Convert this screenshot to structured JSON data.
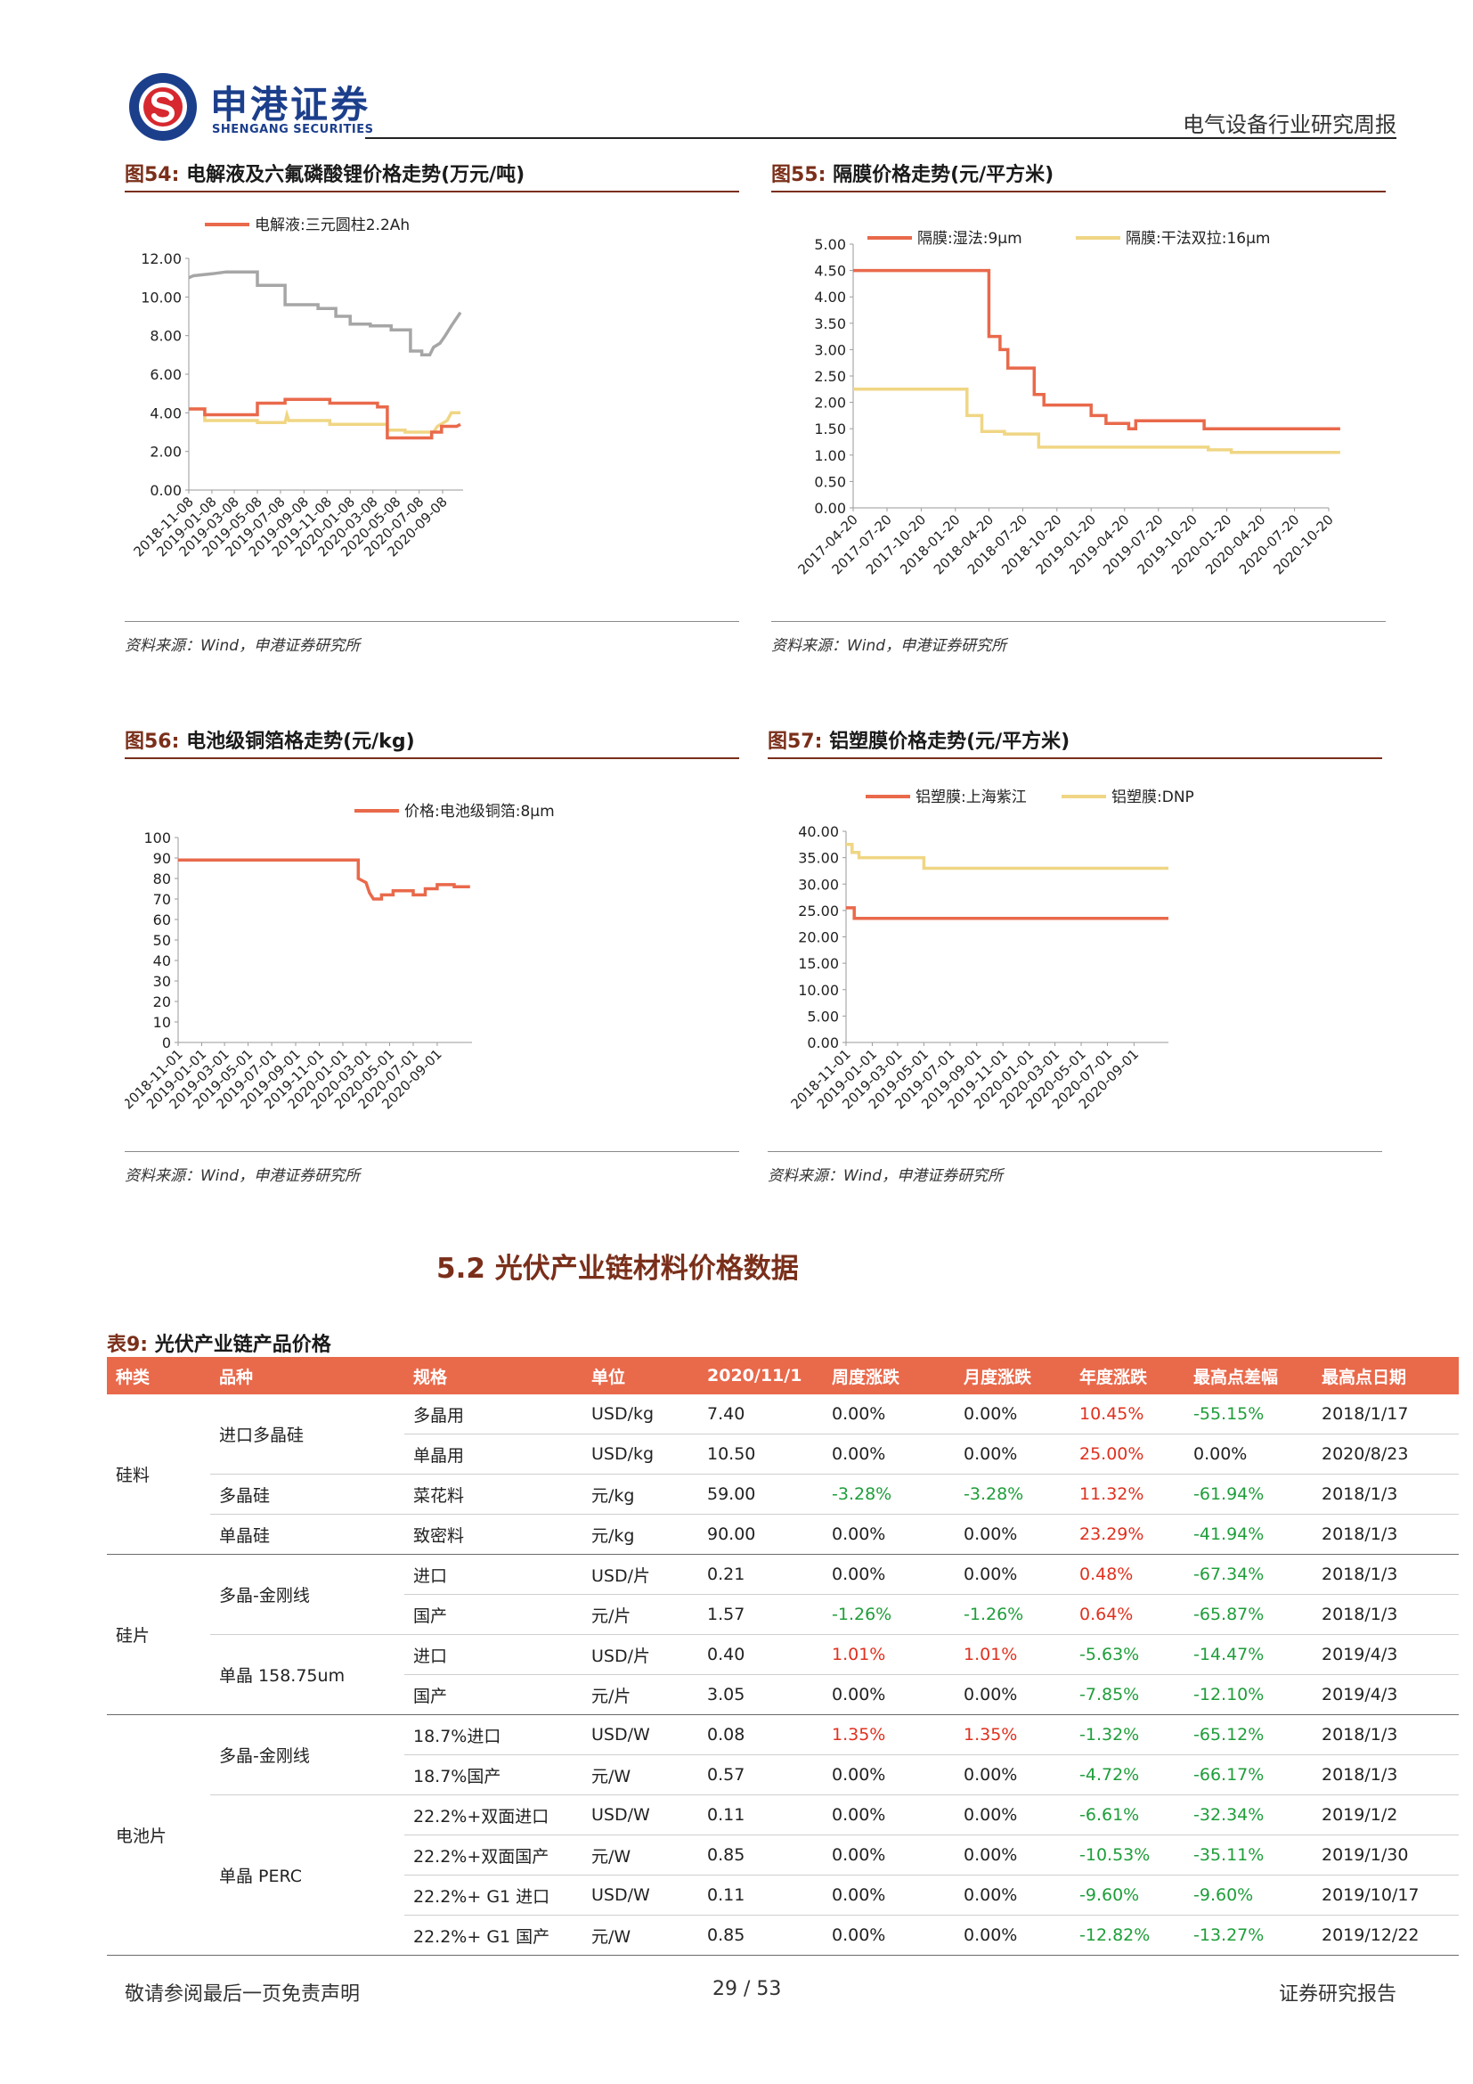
{
  "header": {
    "brand_cn": "申港证券",
    "brand_en": "SHENGANG SECURITIES",
    "report_type": "电气设备行业研究周报"
  },
  "figures": [
    {
      "num": "图54:",
      "title": "电解液及六氟磷酸锂价格走势(万元/吨)",
      "source": "资料来源：Wind，申港证券研究所"
    },
    {
      "num": "图55:",
      "title": "隔膜价格走势(元/平方米)",
      "source": "资料来源：Wind，申港证券研究所"
    },
    {
      "num": "图56:",
      "title": "电池级铜箔格走势(元/kg)",
      "source": "资料来源：Wind，申港证券研究所"
    },
    {
      "num": "图57:",
      "title": "铝塑膜价格走势(元/平方米)",
      "source": "资料来源：Wind，申港证券研究所"
    }
  ],
  "chart_data": [
    {
      "type": "line",
      "categories": [
        "2018-11-08",
        "2019-01-08",
        "2019-03-08",
        "2019-05-08",
        "2019-07-08",
        "2019-09-08",
        "2019-11-08",
        "2020-01-08",
        "2020-03-08",
        "2020-05-08",
        "2020-07-08",
        "2020-09-08"
      ],
      "ylim": [
        0,
        12
      ],
      "yticks": [
        "0.00",
        "2.00",
        "4.00",
        "6.00",
        "8.00",
        "10.00",
        "12.00"
      ],
      "legend": [
        "电解液:三元圆柱2.2Ah"
      ],
      "series": [
        {
          "name": "电解液:三元圆柱2.2Ah",
          "color": "#e9694b",
          "points": [
            [
              "2018-11-08",
              4.2
            ],
            [
              "2018-12-20",
              4.2
            ],
            [
              "2018-12-20",
              3.9
            ],
            [
              "2019-05-08",
              3.9
            ],
            [
              "2019-05-08",
              4.5
            ],
            [
              "2019-07-20",
              4.5
            ],
            [
              "2019-07-20",
              4.7
            ],
            [
              "2019-11-15",
              4.7
            ],
            [
              "2019-11-15",
              4.5
            ],
            [
              "2020-03-20",
              4.5
            ],
            [
              "2020-03-20",
              4.3
            ],
            [
              "2020-04-15",
              4.3
            ],
            [
              "2020-04-15",
              2.7
            ],
            [
              "2020-08-10",
              2.7
            ],
            [
              "2020-08-10",
              3.0
            ],
            [
              "2020-09-05",
              3.0
            ],
            [
              "2020-09-05",
              3.3
            ],
            [
              "2020-10-15",
              3.3
            ],
            [
              "2020-10-25",
              3.4
            ]
          ]
        },
        {
          "name": "",
          "color": "#a6a6a6",
          "points": [
            [
              "2018-11-08",
              11.0
            ],
            [
              "2018-11-20",
              11.1
            ],
            [
              "2019-01-08",
              11.2
            ],
            [
              "2019-02-15",
              11.3
            ],
            [
              "2019-05-08",
              11.3
            ],
            [
              "2019-05-08",
              10.6
            ],
            [
              "2019-07-20",
              10.6
            ],
            [
              "2019-07-20",
              9.6
            ],
            [
              "2019-10-15",
              9.6
            ],
            [
              "2019-10-15",
              9.4
            ],
            [
              "2019-12-01",
              9.4
            ],
            [
              "2019-12-01",
              9.0
            ],
            [
              "2020-01-08",
              9.0
            ],
            [
              "2020-01-08",
              8.6
            ],
            [
              "2020-03-01",
              8.6
            ],
            [
              "2020-03-01",
              8.5
            ],
            [
              "2020-04-25",
              8.5
            ],
            [
              "2020-04-25",
              8.3
            ],
            [
              "2020-06-15",
              8.3
            ],
            [
              "2020-06-15",
              7.2
            ],
            [
              "2020-07-15",
              7.2
            ],
            [
              "2020-07-15",
              7.0
            ],
            [
              "2020-08-05",
              7.0
            ],
            [
              "2020-08-15",
              7.4
            ],
            [
              "2020-09-01",
              7.6
            ],
            [
              "2020-09-15",
              8.0
            ],
            [
              "2020-10-01",
              8.5
            ],
            [
              "2020-10-25",
              9.2
            ]
          ]
        },
        {
          "name": "",
          "color": "#f0d684",
          "points": [
            [
              "2018-11-08",
              4.2
            ],
            [
              "2018-12-20",
              4.2
            ],
            [
              "2018-12-20",
              3.6
            ],
            [
              "2019-05-08",
              3.6
            ],
            [
              "2019-05-08",
              3.5
            ],
            [
              "2019-07-20",
              3.5
            ],
            [
              "2019-07-25",
              3.9
            ],
            [
              "2019-07-30",
              3.6
            ],
            [
              "2019-11-15",
              3.6
            ],
            [
              "2019-11-15",
              3.4
            ],
            [
              "2020-04-15",
              3.4
            ],
            [
              "2020-04-15",
              3.1
            ],
            [
              "2020-06-01",
              3.1
            ],
            [
              "2020-06-01",
              3.0
            ],
            [
              "2020-08-15",
              3.0
            ],
            [
              "2020-08-25",
              3.3
            ],
            [
              "2020-09-20",
              3.6
            ],
            [
              "2020-10-01",
              4.0
            ],
            [
              "2020-10-25",
              4.0
            ]
          ]
        }
      ]
    },
    {
      "type": "line",
      "categories": [
        "2017-04-20",
        "2017-07-20",
        "2017-10-20",
        "2018-01-20",
        "2018-04-20",
        "2018-07-20",
        "2018-10-20",
        "2019-01-20",
        "2019-04-20",
        "2019-07-20",
        "2019-10-20",
        "2020-01-20",
        "2020-04-20",
        "2020-07-20",
        "2020-10-20"
      ],
      "ylim": [
        0,
        5
      ],
      "yticks": [
        "0.00",
        "0.50",
        "1.00",
        "1.50",
        "2.00",
        "2.50",
        "3.00",
        "3.50",
        "4.00",
        "4.50",
        "5.00"
      ],
      "legend": [
        "隔膜:湿法:9μm",
        "隔膜:干法双拉:16μm"
      ],
      "series": [
        {
          "name": "隔膜:湿法:9μm",
          "color": "#e9694b",
          "points": [
            [
              "2017-04-20",
              4.5
            ],
            [
              "2018-04-20",
              4.5
            ],
            [
              "2018-04-20",
              3.25
            ],
            [
              "2018-05-20",
              3.25
            ],
            [
              "2018-05-20",
              3.0
            ],
            [
              "2018-06-10",
              3.0
            ],
            [
              "2018-06-10",
              2.65
            ],
            [
              "2018-08-20",
              2.65
            ],
            [
              "2018-08-20",
              2.15
            ],
            [
              "2018-09-15",
              2.15
            ],
            [
              "2018-09-15",
              1.95
            ],
            [
              "2019-01-20",
              1.95
            ],
            [
              "2019-01-20",
              1.75
            ],
            [
              "2019-03-01",
              1.75
            ],
            [
              "2019-03-01",
              1.6
            ],
            [
              "2019-05-01",
              1.6
            ],
            [
              "2019-05-01",
              1.5
            ],
            [
              "2019-05-20",
              1.5
            ],
            [
              "2019-05-20",
              1.65
            ],
            [
              "2019-11-20",
              1.65
            ],
            [
              "2019-11-20",
              1.5
            ],
            [
              "2020-11-20",
              1.5
            ]
          ]
        },
        {
          "name": "隔膜:干法双拉:16μm",
          "color": "#f0d684",
          "points": [
            [
              "2017-04-20",
              2.25
            ],
            [
              "2018-02-20",
              2.25
            ],
            [
              "2018-02-20",
              1.75
            ],
            [
              "2018-04-01",
              1.75
            ],
            [
              "2018-04-01",
              1.45
            ],
            [
              "2018-06-01",
              1.45
            ],
            [
              "2018-06-01",
              1.4
            ],
            [
              "2018-09-01",
              1.4
            ],
            [
              "2018-09-01",
              1.15
            ],
            [
              "2019-12-01",
              1.15
            ],
            [
              "2019-12-01",
              1.1
            ],
            [
              "2020-02-01",
              1.1
            ],
            [
              "2020-02-01",
              1.05
            ],
            [
              "2020-11-20",
              1.05
            ]
          ]
        }
      ]
    },
    {
      "type": "line",
      "categories": [
        "2018-11-01",
        "2019-01-01",
        "2019-03-01",
        "2019-05-01",
        "2019-07-01",
        "2019-09-01",
        "2019-11-01",
        "2020-01-01",
        "2020-03-01",
        "2020-05-01",
        "2020-07-01",
        "2020-09-01"
      ],
      "ylim": [
        0,
        100
      ],
      "yticks": [
        "0",
        "10",
        "20",
        "30",
        "40",
        "50",
        "60",
        "70",
        "80",
        "90",
        "100"
      ],
      "legend": [
        "价格:电池级铜箔:8μm"
      ],
      "series": [
        {
          "name": "价格:电池级铜箔:8μm",
          "color": "#e9694b",
          "points": [
            [
              "2018-11-01",
              89
            ],
            [
              "2020-02-10",
              89
            ],
            [
              "2020-02-10",
              80
            ],
            [
              "2020-03-01",
              78
            ],
            [
              "2020-03-10",
              73
            ],
            [
              "2020-03-20",
              70
            ],
            [
              "2020-04-10",
              70
            ],
            [
              "2020-04-10",
              72
            ],
            [
              "2020-05-10",
              72
            ],
            [
              "2020-05-10",
              74
            ],
            [
              "2020-07-01",
              74
            ],
            [
              "2020-07-01",
              72
            ],
            [
              "2020-08-01",
              72
            ],
            [
              "2020-08-01",
              75
            ],
            [
              "2020-09-01",
              75
            ],
            [
              "2020-09-01",
              77
            ],
            [
              "2020-10-15",
              77
            ],
            [
              "2020-10-15",
              76
            ],
            [
              "2020-11-25",
              76
            ]
          ]
        }
      ]
    },
    {
      "type": "line",
      "categories": [
        "2018-11-01",
        "2019-01-01",
        "2019-03-01",
        "2019-05-01",
        "2019-07-01",
        "2019-09-01",
        "2019-11-01",
        "2020-01-01",
        "2020-03-01",
        "2020-05-01",
        "2020-07-01",
        "2020-09-01"
      ],
      "ylim": [
        0,
        40
      ],
      "yticks": [
        "0.00",
        "5.00",
        "10.00",
        "15.00",
        "20.00",
        "25.00",
        "30.00",
        "35.00",
        "40.00"
      ],
      "legend": [
        "铝塑膜:上海紫江",
        "铝塑膜:DNP"
      ],
      "series": [
        {
          "name": "铝塑膜:上海紫江",
          "color": "#e9694b",
          "points": [
            [
              "2018-11-01",
              25.5
            ],
            [
              "2018-11-20",
              25.5
            ],
            [
              "2018-11-20",
              23.5
            ],
            [
              "2020-11-20",
              23.5
            ]
          ]
        },
        {
          "name": "铝塑膜:DNP",
          "color": "#f0d684",
          "points": [
            [
              "2018-11-01",
              37.5
            ],
            [
              "2018-11-15",
              37.5
            ],
            [
              "2018-11-15",
              36
            ],
            [
              "2018-12-01",
              36
            ],
            [
              "2018-12-01",
              35
            ],
            [
              "2019-05-01",
              35
            ],
            [
              "2019-05-01",
              33
            ],
            [
              "2020-11-20",
              33
            ]
          ]
        }
      ]
    }
  ],
  "section": {
    "title": "5.2 光伏产业链材料价格数据"
  },
  "table": {
    "num": "表9:",
    "caption": "光伏产业链产品价格",
    "headers": [
      "种类",
      "品种",
      "规格",
      "单位",
      "2020/11/1",
      "周度涨跌",
      "月度涨跌",
      "年度涨跌",
      "最高点差幅",
      "最高点日期"
    ],
    "rows": [
      [
        "硅料",
        "进口多晶硅",
        "多晶用",
        "USD/kg",
        "7.40",
        "0.00%",
        "0.00%",
        "10.45%",
        "-55.15%",
        "2018/1/17"
      ],
      [
        "",
        "",
        "单晶用",
        "USD/kg",
        "10.50",
        "0.00%",
        "0.00%",
        "25.00%",
        "0.00%",
        "2020/8/23"
      ],
      [
        "",
        "多晶硅",
        "菜花料",
        "元/kg",
        "59.00",
        "-3.28%",
        "-3.28%",
        "11.32%",
        "-61.94%",
        "2018/1/3"
      ],
      [
        "",
        "单晶硅",
        "致密料",
        "元/kg",
        "90.00",
        "0.00%",
        "0.00%",
        "23.29%",
        "-41.94%",
        "2018/1/3"
      ],
      [
        "硅片",
        "多晶-金刚线",
        "进口",
        "USD/片",
        "0.21",
        "0.00%",
        "0.00%",
        "0.48%",
        "-67.34%",
        "2018/1/3"
      ],
      [
        "",
        "",
        "国产",
        "元/片",
        "1.57",
        "-1.26%",
        "-1.26%",
        "0.64%",
        "-65.87%",
        "2018/1/3"
      ],
      [
        "",
        "单晶 158.75um",
        "进口",
        "USD/片",
        "0.40",
        "1.01%",
        "1.01%",
        "-5.63%",
        "-14.47%",
        "2019/4/3"
      ],
      [
        "",
        "",
        "国产",
        "元/片",
        "3.05",
        "0.00%",
        "0.00%",
        "-7.85%",
        "-12.10%",
        "2019/4/3"
      ],
      [
        "电池片",
        "多晶-金刚线",
        "18.7%进口",
        "USD/W",
        "0.08",
        "1.35%",
        "1.35%",
        "-1.32%",
        "-65.12%",
        "2018/1/3"
      ],
      [
        "",
        "",
        "18.7%国产",
        "元/W",
        "0.57",
        "0.00%",
        "0.00%",
        "-4.72%",
        "-66.17%",
        "2018/1/3"
      ],
      [
        "",
        "单晶 PERC",
        "22.2%+双面进口",
        "USD/W",
        "0.11",
        "0.00%",
        "0.00%",
        "-6.61%",
        "-32.34%",
        "2019/1/2"
      ],
      [
        "",
        "",
        "22.2%+双面国产",
        "元/W",
        "0.85",
        "0.00%",
        "0.00%",
        "-10.53%",
        "-35.11%",
        "2019/1/30"
      ],
      [
        "",
        "",
        "22.2%+ G1 进口",
        "USD/W",
        "0.11",
        "0.00%",
        "0.00%",
        "-9.60%",
        "-9.60%",
        "2019/10/17"
      ],
      [
        "",
        "",
        "22.2%+ G1 国产",
        "元/W",
        "0.85",
        "0.00%",
        "0.00%",
        "-12.82%",
        "-13.27%",
        "2019/12/22"
      ]
    ]
  },
  "footer": {
    "disclaimer": "敬请参阅最后一页免责声明",
    "page": "29 / 53",
    "label": "证券研究报告"
  },
  "colors": {
    "accent": "#e9694b",
    "dark_red": "#7a2f1a",
    "brand_blue": "#1c3f8c",
    "up": "#e0301e",
    "down": "#1e9e3a"
  }
}
